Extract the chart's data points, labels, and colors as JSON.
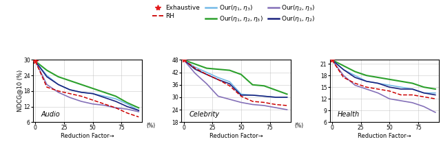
{
  "x": [
    0,
    10,
    20,
    30,
    40,
    50,
    60,
    70,
    80,
    90
  ],
  "audio": {
    "exhaustive_x": [
      0
    ],
    "exhaustive_y": [
      29.5
    ],
    "rh": [
      29.5,
      19.5,
      18.0,
      17.0,
      16.0,
      14.5,
      13.0,
      11.5,
      9.5,
      8.0
    ],
    "our123": [
      29.5,
      26.0,
      23.5,
      22.0,
      20.5,
      19.0,
      17.5,
      16.0,
      13.5,
      11.5
    ],
    "our13": [
      29.5,
      24.0,
      20.5,
      18.5,
      17.5,
      17.0,
      16.0,
      15.0,
      13.0,
      10.5
    ],
    "our23": [
      29.5,
      20.5,
      17.5,
      15.5,
      14.0,
      13.0,
      12.5,
      11.5,
      11.0,
      10.0
    ],
    "our12": [
      29.5,
      23.5,
      20.5,
      18.5,
      17.5,
      17.0,
      15.5,
      14.0,
      12.0,
      10.5
    ],
    "ylim": [
      6,
      30
    ],
    "yticks": [
      6,
      12,
      18,
      24,
      30
    ],
    "title": "Audio"
  },
  "celebrity": {
    "exhaustive_x": [
      0
    ],
    "exhaustive_y": [
      48.0
    ],
    "rh": [
      48.0,
      44.0,
      41.0,
      38.5,
      35.5,
      30.5,
      28.0,
      27.5,
      26.5,
      26.0
    ],
    "our123": [
      48.0,
      46.0,
      44.0,
      43.5,
      43.0,
      41.0,
      36.0,
      35.5,
      33.5,
      31.5
    ],
    "our13": [
      48.0,
      44.5,
      42.0,
      39.5,
      37.5,
      31.5,
      31.0,
      30.5,
      30.0,
      30.0
    ],
    "our23": [
      48.0,
      41.5,
      36.5,
      30.5,
      29.0,
      27.5,
      26.5,
      26.0,
      25.0,
      24.0
    ],
    "our12": [
      48.0,
      43.5,
      41.0,
      38.5,
      36.5,
      31.0,
      31.0,
      30.5,
      30.0,
      30.0
    ],
    "ylim": [
      18,
      48
    ],
    "yticks": [
      18,
      24,
      30,
      36,
      42,
      48
    ],
    "title": "Celebrity"
  },
  "health": {
    "exhaustive_x": [
      0
    ],
    "exhaustive_y": [
      22.0
    ],
    "rh": [
      22.0,
      17.5,
      16.0,
      15.0,
      14.5,
      14.0,
      13.0,
      13.0,
      12.5,
      12.0
    ],
    "our123": [
      22.0,
      20.5,
      19.0,
      18.0,
      17.5,
      17.0,
      16.5,
      16.0,
      15.0,
      14.5
    ],
    "our13": [
      22.0,
      19.5,
      18.0,
      16.5,
      16.0,
      15.5,
      15.0,
      14.5,
      13.5,
      13.5
    ],
    "our23": [
      22.0,
      18.0,
      15.5,
      14.5,
      13.5,
      12.0,
      11.5,
      11.0,
      10.0,
      8.5
    ],
    "our12": [
      22.0,
      19.5,
      17.5,
      16.5,
      16.0,
      15.0,
      14.5,
      14.5,
      13.5,
      13.0
    ],
    "ylim": [
      6,
      22
    ],
    "yticks": [
      6,
      9,
      12,
      15,
      18,
      21
    ],
    "title": "Health"
  },
  "colors": {
    "exhaustive": "#e31a1c",
    "rh": "#cc0000",
    "our123": "#2ca02c",
    "our13": "#74b9e7",
    "our23": "#8470b8",
    "our12": "#1a237e"
  },
  "xticks": [
    0,
    25,
    50,
    75
  ],
  "xlabel": "Reduction Factor→",
  "ylabel": "NDCG@10 (%)"
}
